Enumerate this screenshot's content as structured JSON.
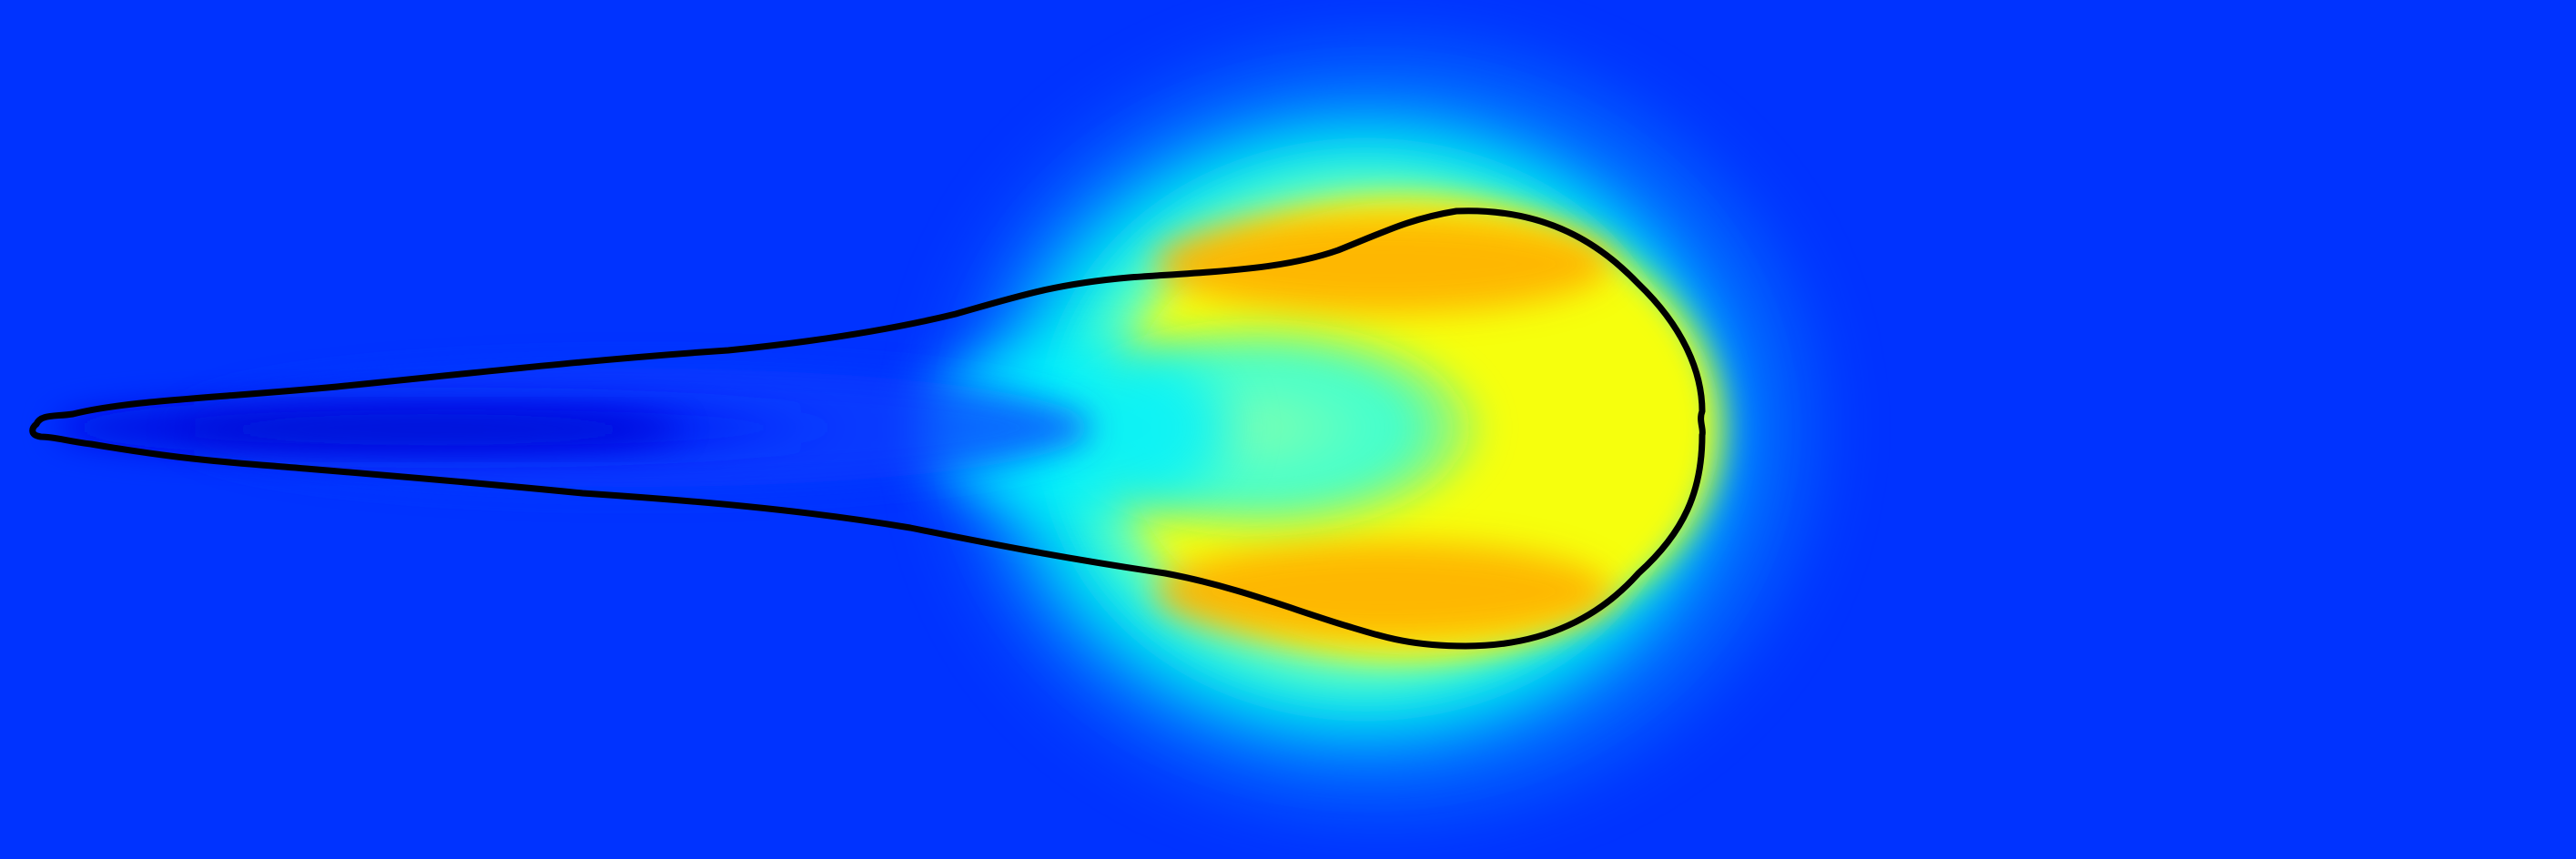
{
  "figure": {
    "description_colors": {
      "background": "#0033ff",
      "deep_blue": "#0010e0",
      "cyan": "#00eeff",
      "yellow": "#ffff00",
      "orange": "#ffb000",
      "outline": "#000000"
    },
    "interface_outline": "black-contour",
    "colormap": "jet"
  }
}
